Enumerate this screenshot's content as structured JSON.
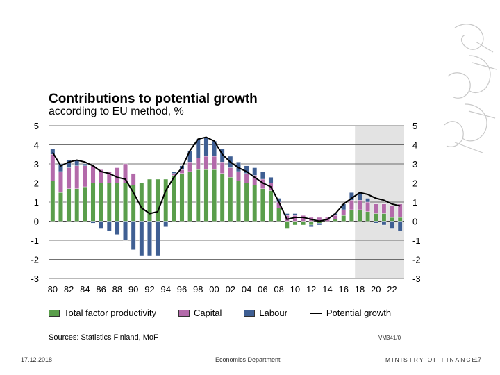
{
  "slide": {
    "title": "Contributions  to potential growth",
    "subtitle": "according to EU method, %",
    "sources": "Sources: Statistics Finland, MoF",
    "code": "VM341/0",
    "footer_date": "17.12.2018",
    "footer_dept": "Economics Department",
    "footer_ministry": "MINISTRY OF FINANCE",
    "footer_page": "17"
  },
  "chart_data": {
    "type": "bar",
    "stacked": true,
    "x": [
      1980,
      1981,
      1982,
      1983,
      1984,
      1985,
      1986,
      1987,
      1988,
      1989,
      1990,
      1991,
      1992,
      1993,
      1994,
      1995,
      1996,
      1997,
      1998,
      1999,
      2000,
      2001,
      2002,
      2003,
      2004,
      2005,
      2006,
      2007,
      2008,
      2009,
      2010,
      2011,
      2012,
      2013,
      2014,
      2015,
      2016,
      2017,
      2018,
      2019,
      2020,
      2021,
      2022,
      2023
    ],
    "x_tick_labels": [
      "80",
      "82",
      "84",
      "86",
      "88",
      "90",
      "92",
      "94",
      "96",
      "98",
      "00",
      "02",
      "04",
      "06",
      "08",
      "10",
      "12",
      "14",
      "16",
      "18",
      "20",
      "22"
    ],
    "ylim": [
      -3,
      5
    ],
    "yticks": [
      "5",
      "4",
      "3",
      "2",
      "1",
      "0",
      "-1",
      "-2",
      "-3"
    ],
    "forecast_start": 2018,
    "colors": {
      "tfp": "#5a9e4b",
      "capital": "#b36aaa",
      "labour": "#3f5f93",
      "line": "#000000",
      "forecast": "#e3e3e3"
    },
    "series": [
      {
        "name": "Total factor productivity",
        "key": "tfp",
        "values": [
          2.1,
          1.5,
          1.7,
          1.7,
          1.8,
          2.0,
          2.0,
          2.0,
          2.0,
          2.0,
          1.9,
          2.0,
          2.2,
          2.2,
          2.2,
          2.4,
          2.5,
          2.6,
          2.7,
          2.7,
          2.7,
          2.5,
          2.3,
          2.1,
          2.0,
          1.9,
          1.7,
          1.6,
          0.7,
          -0.4,
          -0.2,
          -0.2,
          -0.2,
          -0.1,
          0.0,
          0.1,
          0.3,
          0.6,
          0.6,
          0.5,
          0.4,
          0.4,
          0.2,
          0.2
        ]
      },
      {
        "name": "Capital",
        "key": "capital",
        "values": [
          1.4,
          1.1,
          1.1,
          1.2,
          1.1,
          0.9,
          0.7,
          0.6,
          0.8,
          1.0,
          0.6,
          0.0,
          0.0,
          0.0,
          0.0,
          0.1,
          0.2,
          0.5,
          0.6,
          0.7,
          0.7,
          0.6,
          0.5,
          0.5,
          0.5,
          0.5,
          0.5,
          0.4,
          0.3,
          0.3,
          0.3,
          0.3,
          0.2,
          0.2,
          0.2,
          0.2,
          0.3,
          0.5,
          0.5,
          0.5,
          0.5,
          0.5,
          0.6,
          0.7
        ]
      },
      {
        "name": "Labour",
        "key": "labour",
        "values": [
          0.3,
          0.4,
          0.4,
          0.3,
          0.1,
          -0.1,
          -0.4,
          -0.5,
          -0.7,
          -1.0,
          -1.5,
          -1.8,
          -1.8,
          -1.8,
          -0.3,
          0.1,
          0.2,
          0.6,
          1.0,
          1.0,
          0.8,
          0.7,
          0.6,
          0.5,
          0.4,
          0.4,
          0.4,
          0.3,
          0.2,
          0.1,
          0.1,
          0.0,
          -0.1,
          -0.1,
          0.0,
          0.1,
          0.3,
          0.4,
          0.4,
          0.2,
          -0.1,
          -0.2,
          -0.4,
          -0.5
        ]
      },
      {
        "name": "Potential growth",
        "key": "line",
        "type": "line",
        "values": [
          3.6,
          2.9,
          3.1,
          3.2,
          3.1,
          2.9,
          2.6,
          2.5,
          2.3,
          2.2,
          1.5,
          0.7,
          0.4,
          0.5,
          1.6,
          2.3,
          2.8,
          3.7,
          4.3,
          4.4,
          4.2,
          3.5,
          3.1,
          2.8,
          2.6,
          2.3,
          2.0,
          1.8,
          1.0,
          0.1,
          0.2,
          0.2,
          0.1,
          0.0,
          0.1,
          0.4,
          0.9,
          1.2,
          1.5,
          1.4,
          1.2,
          1.1,
          0.9,
          0.8
        ]
      }
    ]
  }
}
